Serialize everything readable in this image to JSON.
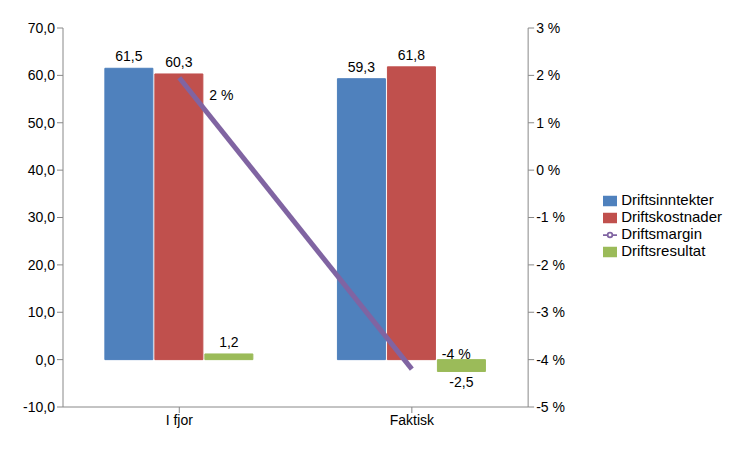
{
  "chart_data": {
    "type": "bar",
    "categories": [
      "I fjor",
      "Faktisk"
    ],
    "series": [
      {
        "name": "Driftsinntekter",
        "color": "#4F81BD",
        "values": [
          61.5,
          59.3
        ],
        "value_labels": [
          "61,5",
          "59,3"
        ]
      },
      {
        "name": "Driftskostnader",
        "color": "#C0504D",
        "values": [
          60.3,
          61.8
        ],
        "value_labels": [
          "60,3",
          "61,8"
        ]
      },
      {
        "name": "Driftsresultat",
        "color": "#9BBB59",
        "values": [
          1.2,
          -2.5
        ],
        "value_labels": [
          "1,2",
          "-2,5"
        ]
      },
      {
        "name": "Driftsmargin",
        "color": "#8064A2",
        "type": "line",
        "axis": "y2",
        "values": [
          1.95,
          -4.2
        ],
        "value_labels": [
          "2 %",
          "-4 %"
        ]
      }
    ],
    "ylim": [
      -10,
      70
    ],
    "yticks": [
      {
        "value": -10,
        "label": "-10,0"
      },
      {
        "value": 0,
        "label": "0,0"
      },
      {
        "value": 10,
        "label": "10,0"
      },
      {
        "value": 20,
        "label": "20,0"
      },
      {
        "value": 30,
        "label": "30,0"
      },
      {
        "value": 40,
        "label": "40,0"
      },
      {
        "value": 50,
        "label": "50,0"
      },
      {
        "value": 60,
        "label": "60,0"
      },
      {
        "value": 70,
        "label": "70,0"
      }
    ],
    "y2lim": [
      -5,
      3
    ],
    "y2ticks": [
      {
        "value": -5,
        "label": "-5 %"
      },
      {
        "value": -4,
        "label": "-4 %"
      },
      {
        "value": -3,
        "label": "-3 %"
      },
      {
        "value": -2,
        "label": "-2 %"
      },
      {
        "value": -1,
        "label": "-1 %"
      },
      {
        "value": 0,
        "label": "0 %"
      },
      {
        "value": 1,
        "label": "1 %"
      },
      {
        "value": 2,
        "label": "2 %"
      },
      {
        "value": 3,
        "label": "3 %"
      }
    ],
    "grid": false,
    "legend": "right",
    "data_labels": true
  }
}
